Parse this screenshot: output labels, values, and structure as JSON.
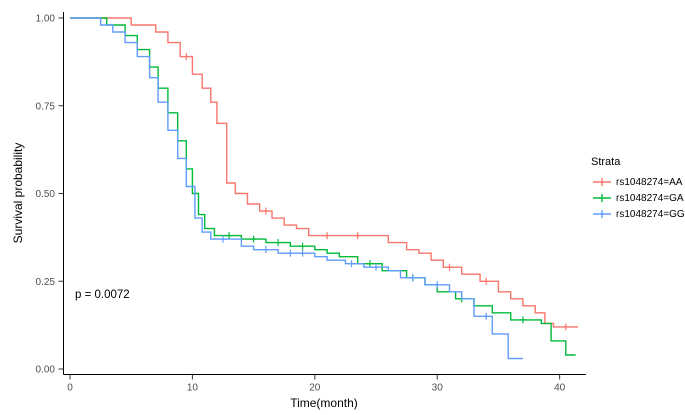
{
  "chart_data": {
    "type": "line",
    "subtype": "kaplan-meier-step-survival",
    "title": "",
    "xlabel": "Time(month)",
    "ylabel": "Survival probability",
    "xlim": [
      0,
      41.5
    ],
    "ylim": [
      0,
      1.0
    ],
    "x_ticks": [
      0,
      10,
      20,
      30,
      40
    ],
    "y_ticks": [
      "0.00",
      "0.25",
      "0.50",
      "0.75",
      "1.00"
    ],
    "y_tick_values": [
      0,
      0.25,
      0.5,
      0.75,
      1.0
    ],
    "grid": false,
    "annotation": "p = 0.0072",
    "legend_title": "Strata",
    "legend_position": "right",
    "axis_color": "#000000",
    "tick_label_color": "#4d4d4d",
    "series": [
      {
        "name": "rs1048274=AA",
        "color": "#F8766D",
        "steps": [
          [
            0,
            1
          ],
          [
            5,
            1
          ],
          [
            5,
            0.98
          ],
          [
            7,
            0.98
          ],
          [
            7,
            0.96
          ],
          [
            8,
            0.96
          ],
          [
            8,
            0.93
          ],
          [
            9,
            0.93
          ],
          [
            9,
            0.89
          ],
          [
            10,
            0.89
          ],
          [
            10,
            0.84
          ],
          [
            10.8,
            0.84
          ],
          [
            10.8,
            0.8
          ],
          [
            11.5,
            0.8
          ],
          [
            11.5,
            0.76
          ],
          [
            12,
            0.76
          ],
          [
            12,
            0.7
          ],
          [
            12.8,
            0.7
          ],
          [
            12.8,
            0.53
          ],
          [
            13.5,
            0.53
          ],
          [
            13.5,
            0.5
          ],
          [
            14.5,
            0.5
          ],
          [
            14.5,
            0.47
          ],
          [
            15.5,
            0.47
          ],
          [
            15.5,
            0.45
          ],
          [
            16.5,
            0.45
          ],
          [
            16.5,
            0.43
          ],
          [
            17.5,
            0.43
          ],
          [
            17.5,
            0.41
          ],
          [
            18.5,
            0.41
          ],
          [
            18.5,
            0.4
          ],
          [
            19.5,
            0.4
          ],
          [
            19.5,
            0.38
          ],
          [
            26,
            0.38
          ],
          [
            26,
            0.36
          ],
          [
            27.5,
            0.36
          ],
          [
            27.5,
            0.34
          ],
          [
            28.5,
            0.34
          ],
          [
            28.5,
            0.33
          ],
          [
            29.5,
            0.33
          ],
          [
            29.5,
            0.31
          ],
          [
            30.5,
            0.31
          ],
          [
            30.5,
            0.29
          ],
          [
            32,
            0.29
          ],
          [
            32,
            0.27
          ],
          [
            33.5,
            0.27
          ],
          [
            33.5,
            0.25
          ],
          [
            35,
            0.25
          ],
          [
            35,
            0.22
          ],
          [
            36,
            0.22
          ],
          [
            36,
            0.2
          ],
          [
            37,
            0.2
          ],
          [
            37,
            0.18
          ],
          [
            38,
            0.18
          ],
          [
            38,
            0.16
          ],
          [
            38.8,
            0.16
          ],
          [
            38.8,
            0.13
          ],
          [
            39.5,
            0.13
          ],
          [
            39.5,
            0.12
          ],
          [
            41.5,
            0.12
          ]
        ],
        "censor": [
          [
            9.5,
            0.89
          ],
          [
            16,
            0.45
          ],
          [
            21,
            0.38
          ],
          [
            23.5,
            0.38
          ],
          [
            31,
            0.29
          ],
          [
            34,
            0.25
          ],
          [
            40.5,
            0.12
          ]
        ]
      },
      {
        "name": "rs1048274=GA",
        "color": "#00BA38",
        "steps": [
          [
            0,
            1
          ],
          [
            3,
            1
          ],
          [
            3,
            0.98
          ],
          [
            4.5,
            0.98
          ],
          [
            4.5,
            0.95
          ],
          [
            5.5,
            0.95
          ],
          [
            5.5,
            0.91
          ],
          [
            6.5,
            0.91
          ],
          [
            6.5,
            0.86
          ],
          [
            7.2,
            0.86
          ],
          [
            7.2,
            0.8
          ],
          [
            8,
            0.8
          ],
          [
            8,
            0.73
          ],
          [
            8.8,
            0.73
          ],
          [
            8.8,
            0.65
          ],
          [
            9.5,
            0.65
          ],
          [
            9.5,
            0.57
          ],
          [
            10,
            0.57
          ],
          [
            10,
            0.5
          ],
          [
            10.5,
            0.5
          ],
          [
            10.5,
            0.44
          ],
          [
            11,
            0.44
          ],
          [
            11,
            0.4
          ],
          [
            11.8,
            0.4
          ],
          [
            11.8,
            0.38
          ],
          [
            14,
            0.38
          ],
          [
            14,
            0.37
          ],
          [
            16,
            0.37
          ],
          [
            16,
            0.36
          ],
          [
            18,
            0.36
          ],
          [
            18,
            0.35
          ],
          [
            20,
            0.35
          ],
          [
            20,
            0.34
          ],
          [
            21,
            0.34
          ],
          [
            21,
            0.33
          ],
          [
            22,
            0.33
          ],
          [
            22,
            0.32
          ],
          [
            23.5,
            0.32
          ],
          [
            23.5,
            0.3
          ],
          [
            25.5,
            0.3
          ],
          [
            25.5,
            0.28
          ],
          [
            27.5,
            0.28
          ],
          [
            27.5,
            0.26
          ],
          [
            29,
            0.26
          ],
          [
            29,
            0.24
          ],
          [
            30,
            0.24
          ],
          [
            30,
            0.22
          ],
          [
            31.5,
            0.22
          ],
          [
            31.5,
            0.2
          ],
          [
            33,
            0.2
          ],
          [
            33,
            0.18
          ],
          [
            34.5,
            0.18
          ],
          [
            34.5,
            0.16
          ],
          [
            36,
            0.16
          ],
          [
            36,
            0.14
          ],
          [
            38.5,
            0.14
          ],
          [
            38.5,
            0.13
          ],
          [
            39.3,
            0.13
          ],
          [
            39.3,
            0.08
          ],
          [
            40.5,
            0.08
          ],
          [
            40.5,
            0.04
          ],
          [
            41.3,
            0.04
          ]
        ],
        "censor": [
          [
            13,
            0.38
          ],
          [
            15,
            0.37
          ],
          [
            17,
            0.36
          ],
          [
            19,
            0.35
          ],
          [
            24.5,
            0.3
          ],
          [
            28,
            0.26
          ],
          [
            32,
            0.2
          ],
          [
            37,
            0.14
          ]
        ]
      },
      {
        "name": "rs1048274=GG",
        "color": "#619CFF",
        "steps": [
          [
            0,
            1
          ],
          [
            2.5,
            1
          ],
          [
            2.5,
            0.98
          ],
          [
            3.5,
            0.98
          ],
          [
            3.5,
            0.96
          ],
          [
            4.5,
            0.96
          ],
          [
            4.5,
            0.93
          ],
          [
            5.5,
            0.93
          ],
          [
            5.5,
            0.89
          ],
          [
            6.5,
            0.89
          ],
          [
            6.5,
            0.83
          ],
          [
            7.2,
            0.83
          ],
          [
            7.2,
            0.76
          ],
          [
            8,
            0.76
          ],
          [
            8,
            0.68
          ],
          [
            8.8,
            0.68
          ],
          [
            8.8,
            0.6
          ],
          [
            9.5,
            0.6
          ],
          [
            9.5,
            0.52
          ],
          [
            10.2,
            0.52
          ],
          [
            10.2,
            0.43
          ],
          [
            10.8,
            0.43
          ],
          [
            10.8,
            0.39
          ],
          [
            11.5,
            0.39
          ],
          [
            11.5,
            0.37
          ],
          [
            14,
            0.37
          ],
          [
            14,
            0.35
          ],
          [
            15,
            0.35
          ],
          [
            15,
            0.34
          ],
          [
            17,
            0.34
          ],
          [
            17,
            0.33
          ],
          [
            20,
            0.33
          ],
          [
            20,
            0.32
          ],
          [
            21,
            0.32
          ],
          [
            21,
            0.31
          ],
          [
            22.5,
            0.31
          ],
          [
            22.5,
            0.3
          ],
          [
            24,
            0.3
          ],
          [
            24,
            0.29
          ],
          [
            26,
            0.29
          ],
          [
            26,
            0.28
          ],
          [
            27,
            0.28
          ],
          [
            27,
            0.26
          ],
          [
            29,
            0.26
          ],
          [
            29,
            0.24
          ],
          [
            31,
            0.24
          ],
          [
            31,
            0.22
          ],
          [
            32,
            0.22
          ],
          [
            32,
            0.2
          ],
          [
            33,
            0.2
          ],
          [
            33,
            0.15
          ],
          [
            34.5,
            0.15
          ],
          [
            34.5,
            0.1
          ],
          [
            35.8,
            0.1
          ],
          [
            35.8,
            0.03
          ],
          [
            37,
            0.03
          ]
        ],
        "censor": [
          [
            12.5,
            0.37
          ],
          [
            16,
            0.34
          ],
          [
            18,
            0.33
          ],
          [
            19,
            0.33
          ],
          [
            23,
            0.3
          ],
          [
            25,
            0.29
          ],
          [
            28,
            0.26
          ],
          [
            30,
            0.24
          ],
          [
            34,
            0.15
          ]
        ]
      }
    ]
  }
}
